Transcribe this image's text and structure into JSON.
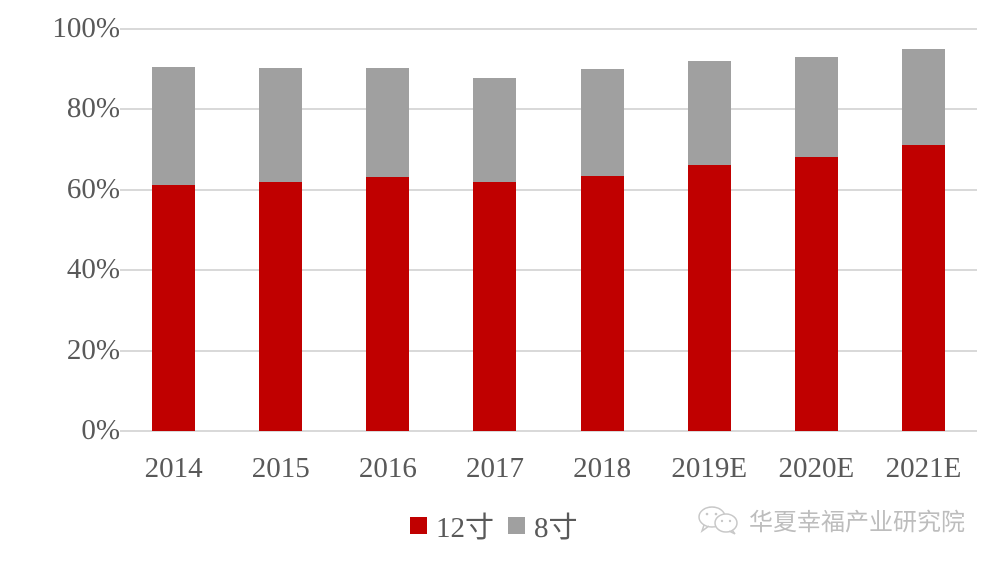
{
  "chart_data": {
    "type": "bar",
    "stacked": true,
    "title": "",
    "xlabel": "",
    "ylabel": "",
    "categories": [
      "2014",
      "2015",
      "2016",
      "2017",
      "2018",
      "2019E",
      "2020E",
      "2021E"
    ],
    "series": [
      {
        "name": "12寸",
        "color": "#c00000",
        "values": [
          61.2,
          61.9,
          63.2,
          61.9,
          63.4,
          66.2,
          68.2,
          71.1
        ]
      },
      {
        "name": "8寸",
        "color": "#a0a0a0",
        "values": [
          29.3,
          28.4,
          27.1,
          25.9,
          26.6,
          25.8,
          24.8,
          23.9
        ]
      }
    ],
    "stack_totals": [
      90.5,
      90.3,
      90.3,
      87.8,
      90.0,
      92.0,
      93.0,
      95.0
    ],
    "ylim": [
      0,
      100
    ],
    "yticks": [
      "0%",
      "20%",
      "40%",
      "60%",
      "80%",
      "100%"
    ],
    "grid": true,
    "legend_position": "bottom"
  },
  "legend": {
    "items": [
      {
        "label": "12寸",
        "color": "#c00000"
      },
      {
        "label": "8寸",
        "color": "#a0a0a0"
      }
    ]
  },
  "watermark": {
    "icon": "wechat-icon",
    "text": "华夏幸福产业研究院"
  }
}
